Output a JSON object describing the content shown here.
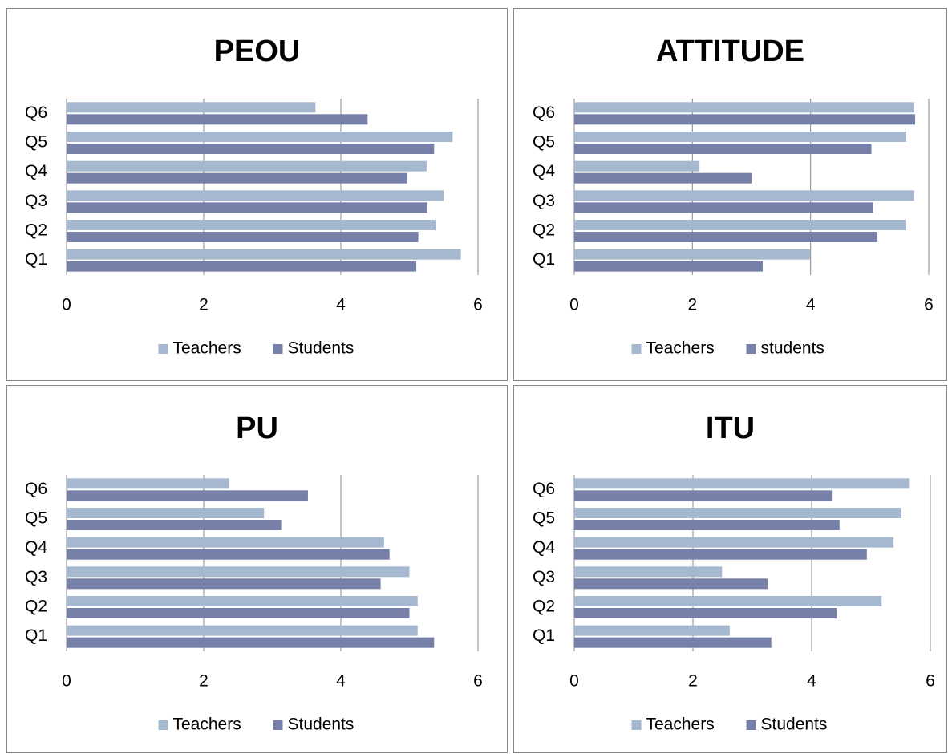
{
  "chart_data": [
    {
      "type": "bar",
      "orientation": "horizontal",
      "title": "PEOU",
      "categories": [
        "Q1",
        "Q2",
        "Q3",
        "Q4",
        "Q5",
        "Q6"
      ],
      "series": [
        {
          "name": "Teachers",
          "color": "#a5b8d0",
          "values": [
            5.75,
            5.38,
            5.5,
            5.25,
            5.63,
            3.63
          ]
        },
        {
          "name": "Students",
          "color": "#7780a8",
          "values": [
            5.1,
            5.13,
            5.26,
            4.97,
            5.36,
            4.39
          ]
        }
      ],
      "xlim": [
        0,
        6
      ],
      "xticks": [
        0,
        2,
        4,
        6
      ],
      "grid": true,
      "legend": "bottom"
    },
    {
      "type": "bar",
      "orientation": "horizontal",
      "title": "ATTITUDE",
      "categories": [
        "Q1",
        "Q2",
        "Q3",
        "Q4",
        "Q5",
        "Q6"
      ],
      "series": [
        {
          "name": "Teachers",
          "color": "#a5b8d0",
          "values": [
            3.99,
            5.62,
            5.75,
            2.12,
            5.62,
            5.75
          ]
        },
        {
          "name": "students",
          "color": "#7780a8",
          "values": [
            3.19,
            5.13,
            5.06,
            3.0,
            5.03,
            5.77
          ]
        }
      ],
      "xlim": [
        0,
        6
      ],
      "xticks": [
        0,
        2,
        4,
        6
      ],
      "grid": true,
      "legend": "bottom"
    },
    {
      "type": "bar",
      "orientation": "horizontal",
      "title": "PU",
      "categories": [
        "Q1",
        "Q2",
        "Q3",
        "Q4",
        "Q5",
        "Q6"
      ],
      "series": [
        {
          "name": "Teachers",
          "color": "#a5b8d0",
          "values": [
            5.12,
            5.12,
            5.0,
            4.63,
            2.88,
            2.37
          ]
        },
        {
          "name": "Students",
          "color": "#7780a8",
          "values": [
            5.36,
            5.0,
            4.58,
            4.71,
            3.13,
            3.52
          ]
        }
      ],
      "xlim": [
        0,
        6
      ],
      "xticks": [
        0,
        2,
        4,
        6
      ],
      "grid": true,
      "legend": "bottom"
    },
    {
      "type": "bar",
      "orientation": "horizontal",
      "title": "ITU",
      "categories": [
        "Q1",
        "Q2",
        "Q3",
        "Q4",
        "Q5",
        "Q6"
      ],
      "series": [
        {
          "name": "Teachers",
          "color": "#a5b8d0",
          "values": [
            2.62,
            5.18,
            2.49,
            5.38,
            5.51,
            5.64
          ]
        },
        {
          "name": "Students",
          "color": "#7780a8",
          "values": [
            3.32,
            4.42,
            3.26,
            4.93,
            4.47,
            4.34
          ]
        }
      ],
      "xlim": [
        0,
        6
      ],
      "xticks": [
        0,
        2,
        4,
        6
      ],
      "grid": true,
      "legend": "bottom"
    }
  ]
}
